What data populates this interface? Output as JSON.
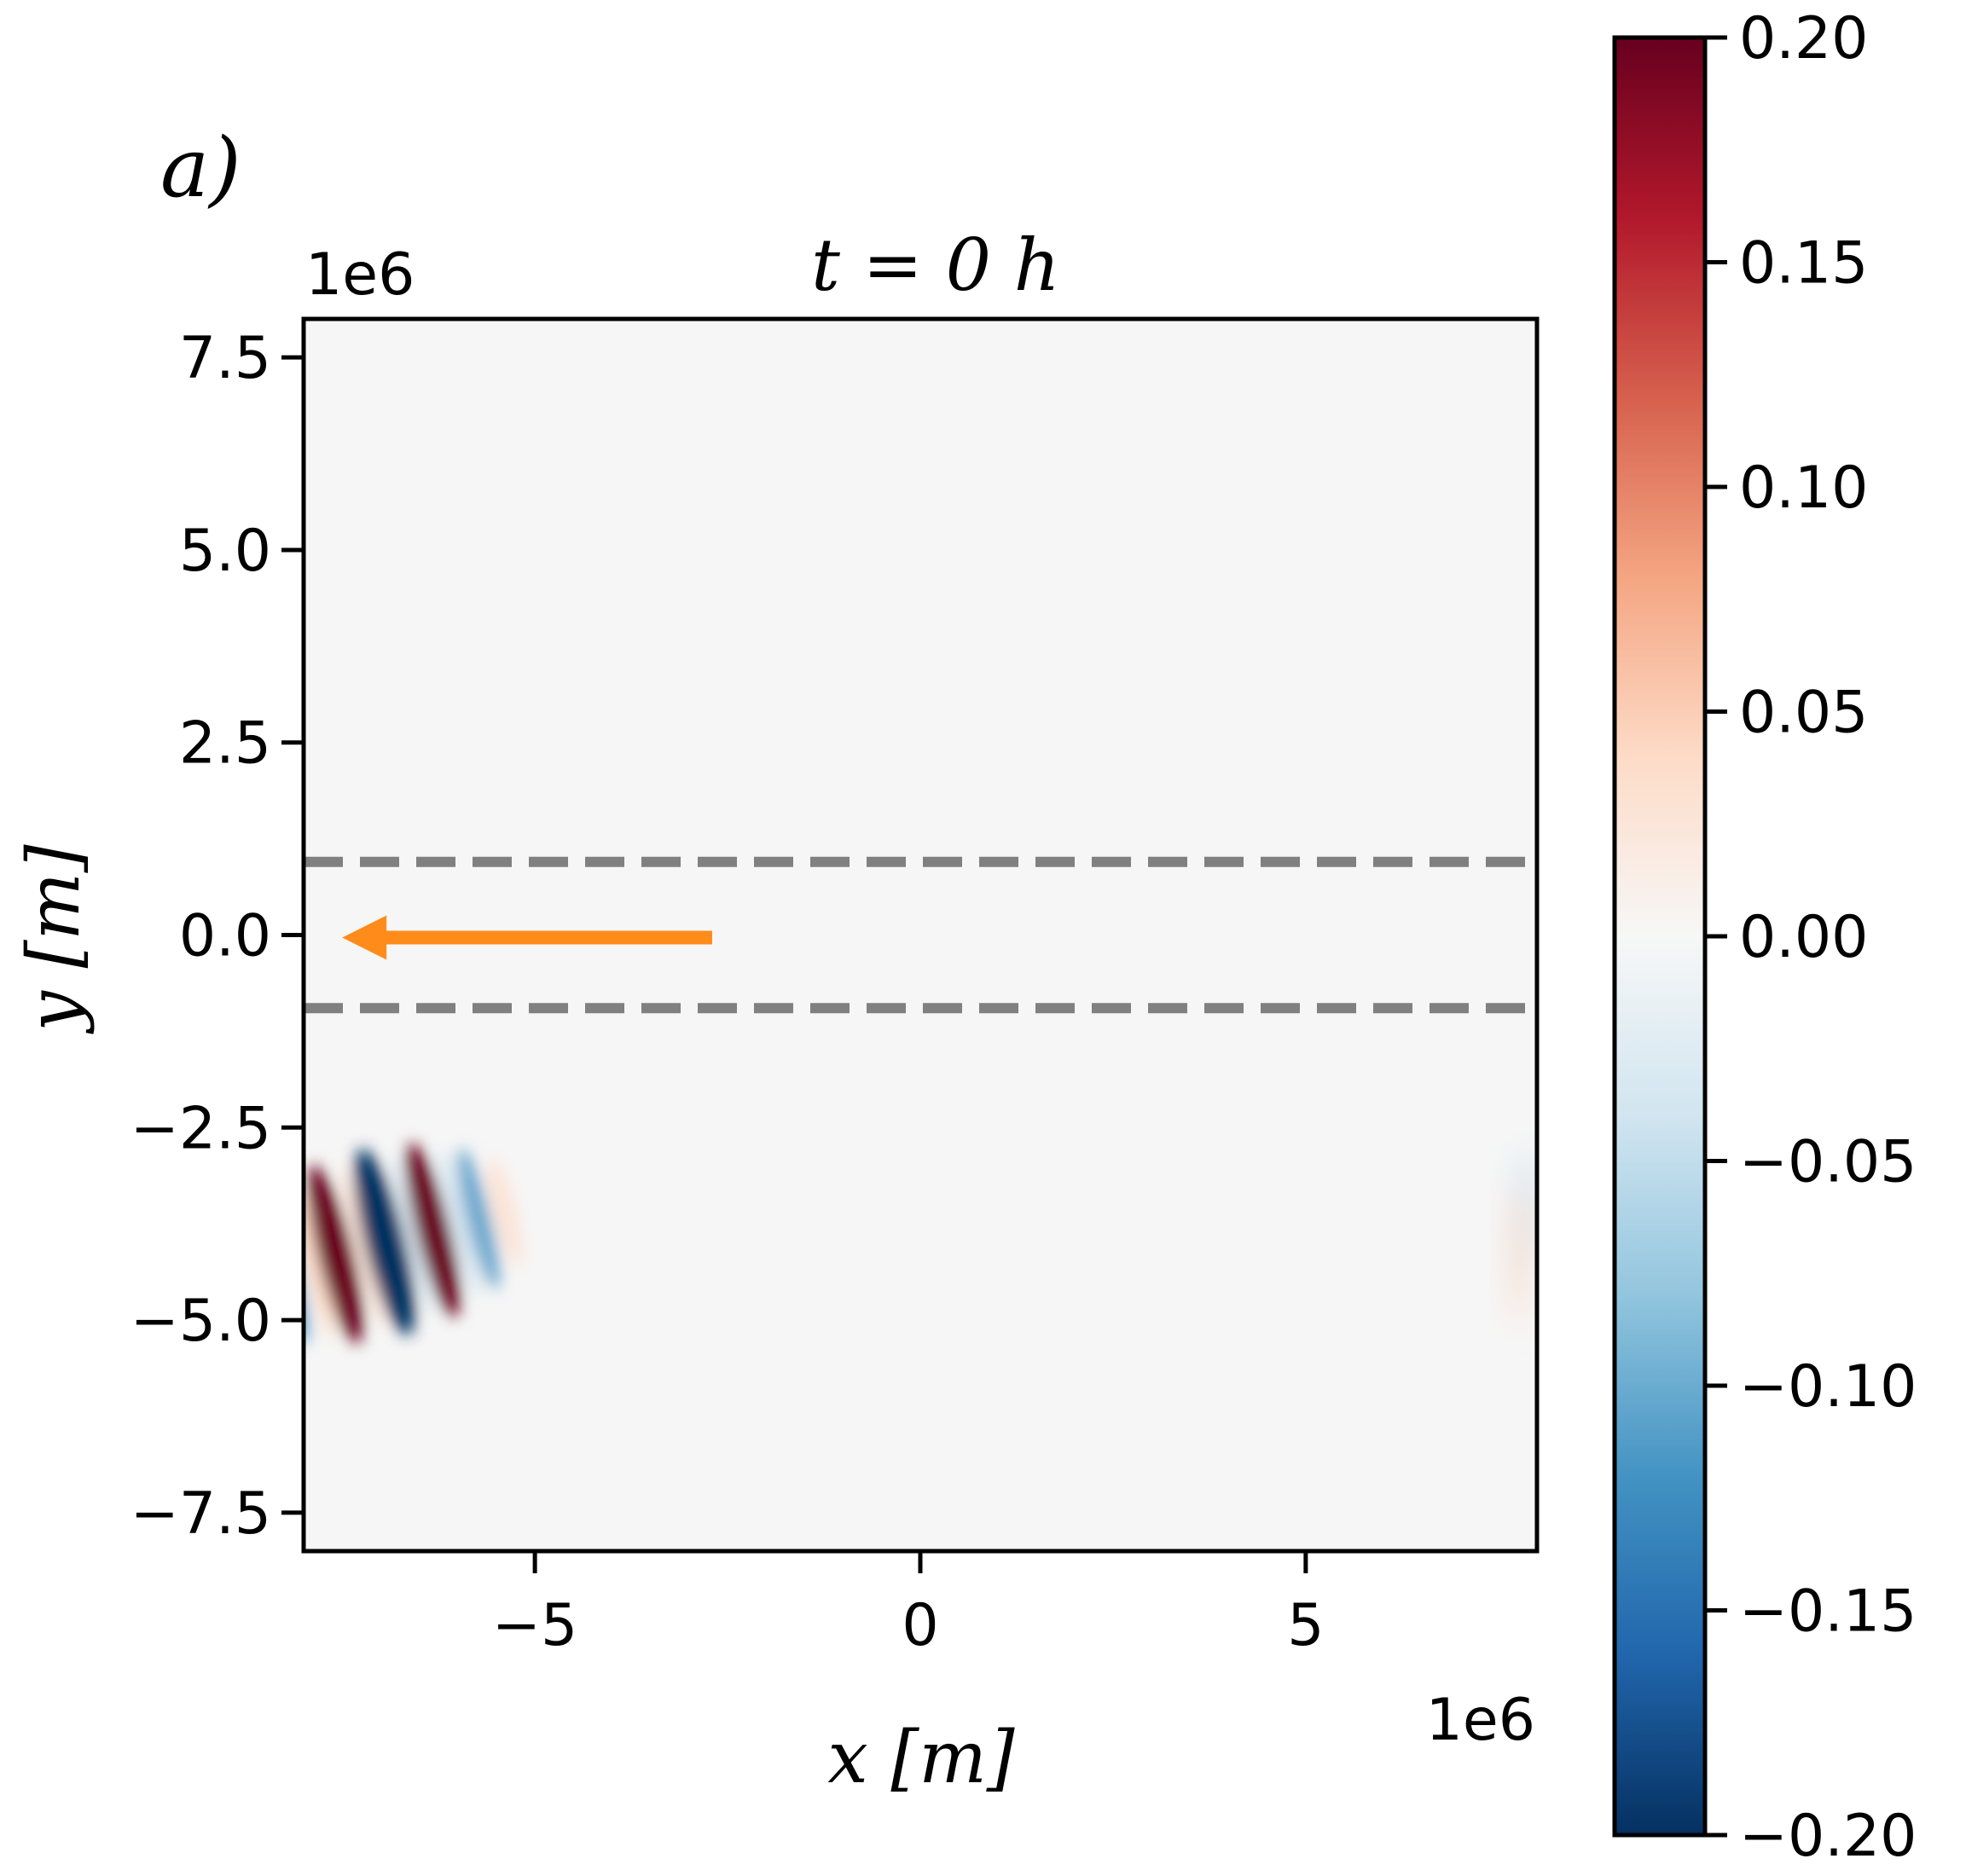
{
  "panel_label": "a)",
  "chart_data": {
    "type": "heatmap",
    "title": "t = 0 h",
    "xlabel": "x [m]",
    "ylabel": "y [m]",
    "x_offset_label": "1e6",
    "y_offset_label": "1e6",
    "xlim": [
      -8,
      8
    ],
    "ylim": [
      -8,
      8
    ],
    "x_ticks": [
      -5,
      0,
      5
    ],
    "x_tick_labels": [
      "−5",
      "0",
      "5"
    ],
    "y_ticks": [
      7.5,
      5.0,
      2.5,
      0.0,
      -2.5,
      -5.0,
      -7.5
    ],
    "y_tick_labels": [
      "7.5",
      "5.0",
      "2.5",
      "0.0",
      "−2.5",
      "−5.0",
      "−7.5"
    ],
    "colormap": "RdBu_r",
    "colorbar": {
      "range": [
        -0.2,
        0.2
      ],
      "ticks": [
        0.2,
        0.15,
        0.1,
        0.05,
        0.0,
        -0.05,
        -0.1,
        -0.15,
        -0.2
      ],
      "tick_labels": [
        "0.20",
        "0.15",
        "0.10",
        "0.05",
        "0.00",
        "−0.05",
        "−0.10",
        "−0.15",
        "−0.20"
      ]
    },
    "wave_packet": {
      "center_x": -7.0,
      "center_y": -4.0,
      "amplitude": 0.2,
      "extent_x": 1.0,
      "extent_y": 0.9
    },
    "dashed_lines_y": [
      0.95,
      -0.95
    ],
    "dashed_line_color": "#808080",
    "arrow": {
      "from_x": -2.7,
      "to_x": -7.5,
      "y": 0.0,
      "color": "#ff8c1a"
    },
    "background_color": "#f6f6f6"
  }
}
